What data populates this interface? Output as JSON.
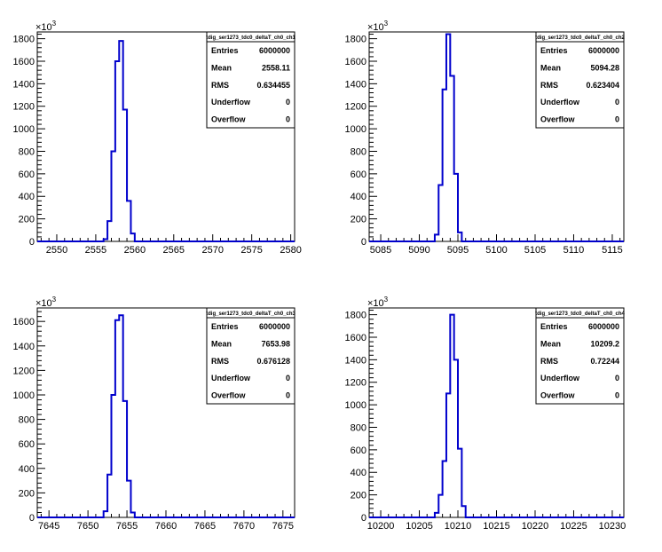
{
  "chart_data": [
    {
      "type": "histogram",
      "stats": {
        "title": "tdig_ser1273_tdc0_deltaT_ch0_ch1",
        "rows": [
          {
            "label": "Entries",
            "value": "6000000"
          },
          {
            "label": "Mean",
            "value": "2558.11"
          },
          {
            "label": "RMS",
            "value": "0.634455"
          },
          {
            "label": "Underflow",
            "value": "0"
          },
          {
            "label": "Overflow",
            "value": "0"
          }
        ]
      },
      "x_ticks": [
        "2550",
        "2555",
        "2560",
        "2565",
        "2570",
        "2575",
        "2580"
      ],
      "y_ticks": [
        "0",
        "200",
        "400",
        "600",
        "800",
        "1000",
        "1200",
        "1400",
        "1600",
        "1800"
      ],
      "y_multiplier": "×10",
      "y_multiplier_exp": "3",
      "xlim": [
        2547.5,
        2580.5
      ],
      "ylim": [
        0,
        1860
      ],
      "bin_width": 0.5,
      "bins": [
        {
          "x": 2556.0,
          "y": 20
        },
        {
          "x": 2556.5,
          "y": 180
        },
        {
          "x": 2557.0,
          "y": 800
        },
        {
          "x": 2557.5,
          "y": 1600
        },
        {
          "x": 2558.0,
          "y": 1780
        },
        {
          "x": 2558.5,
          "y": 1170
        },
        {
          "x": 2559.0,
          "y": 360
        },
        {
          "x": 2559.5,
          "y": 70
        }
      ]
    },
    {
      "type": "histogram",
      "stats": {
        "title": "tdig_ser1273_tdc0_deltaT_ch0_ch2",
        "rows": [
          {
            "label": "Entries",
            "value": "6000000"
          },
          {
            "label": "Mean",
            "value": "5094.28"
          },
          {
            "label": "RMS",
            "value": "0.623404"
          },
          {
            "label": "Underflow",
            "value": "0"
          },
          {
            "label": "Overflow",
            "value": "0"
          }
        ]
      },
      "x_ticks": [
        "5085",
        "5090",
        "5095",
        "5100",
        "5105",
        "5110",
        "5115"
      ],
      "y_ticks": [
        "0",
        "200",
        "400",
        "600",
        "800",
        "1000",
        "1200",
        "1400",
        "1600",
        "1800"
      ],
      "y_multiplier": "×10",
      "y_multiplier_exp": "3",
      "xlim": [
        5083.5,
        5116.5
      ],
      "ylim": [
        0,
        1860
      ],
      "bin_width": 0.5,
      "bins": [
        {
          "x": 5092.0,
          "y": 60
        },
        {
          "x": 5092.5,
          "y": 500
        },
        {
          "x": 5093.0,
          "y": 1350
        },
        {
          "x": 5093.5,
          "y": 1840
        },
        {
          "x": 5094.0,
          "y": 1470
        },
        {
          "x": 5094.5,
          "y": 600
        },
        {
          "x": 5095.0,
          "y": 80
        }
      ]
    },
    {
      "type": "histogram",
      "stats": {
        "title": "tdig_ser1273_tdc0_deltaT_ch0_ch3",
        "rows": [
          {
            "label": "Entries",
            "value": "6000000"
          },
          {
            "label": "Mean",
            "value": "7653.98"
          },
          {
            "label": "RMS",
            "value": "0.676128"
          },
          {
            "label": "Underflow",
            "value": "0"
          },
          {
            "label": "Overflow",
            "value": "0"
          }
        ]
      },
      "x_ticks": [
        "7645",
        "7650",
        "7655",
        "7660",
        "7665",
        "7670",
        "7675"
      ],
      "y_ticks": [
        "0",
        "200",
        "400",
        "600",
        "800",
        "1000",
        "1200",
        "1400",
        "1600"
      ],
      "y_multiplier": "×10",
      "y_multiplier_exp": "3",
      "xlim": [
        7643.5,
        7676.5
      ],
      "ylim": [
        0,
        1710
      ],
      "bin_width": 0.5,
      "bins": [
        {
          "x": 7652.0,
          "y": 50
        },
        {
          "x": 7652.5,
          "y": 350
        },
        {
          "x": 7653.0,
          "y": 1000
        },
        {
          "x": 7653.5,
          "y": 1610
        },
        {
          "x": 7654.0,
          "y": 1650
        },
        {
          "x": 7654.5,
          "y": 950
        },
        {
          "x": 7655.0,
          "y": 300
        },
        {
          "x": 7655.5,
          "y": 40
        }
      ]
    },
    {
      "type": "histogram",
      "stats": {
        "title": "tdig_ser1273_tdc0_deltaT_ch0_ch4",
        "rows": [
          {
            "label": "Entries",
            "value": "6000000"
          },
          {
            "label": "Mean",
            "value": "10209.2"
          },
          {
            "label": "RMS",
            "value": "0.72244"
          },
          {
            "label": "Underflow",
            "value": "0"
          },
          {
            "label": "Overflow",
            "value": "0"
          }
        ]
      },
      "x_ticks": [
        "10200",
        "10205",
        "10210",
        "10215",
        "10220",
        "10225",
        "10230"
      ],
      "y_ticks": [
        "0",
        "200",
        "400",
        "600",
        "800",
        "1000",
        "1200",
        "1400",
        "1600",
        "1800"
      ],
      "y_multiplier": "×10",
      "y_multiplier_exp": "3",
      "xlim": [
        10198.5,
        10231.5
      ],
      "ylim": [
        0,
        1860
      ],
      "bin_width": 0.5,
      "bins": [
        {
          "x": 10207.0,
          "y": 40
        },
        {
          "x": 10207.5,
          "y": 200
        },
        {
          "x": 10208.0,
          "y": 500
        },
        {
          "x": 10208.5,
          "y": 1100
        },
        {
          "x": 10209.0,
          "y": 1800
        },
        {
          "x": 10209.5,
          "y": 1400
        },
        {
          "x": 10210.0,
          "y": 610
        },
        {
          "x": 10210.5,
          "y": 100
        }
      ]
    }
  ],
  "colors": {
    "histogram_line": "#0000cc",
    "axis": "#000000",
    "background": "#ffffff"
  }
}
